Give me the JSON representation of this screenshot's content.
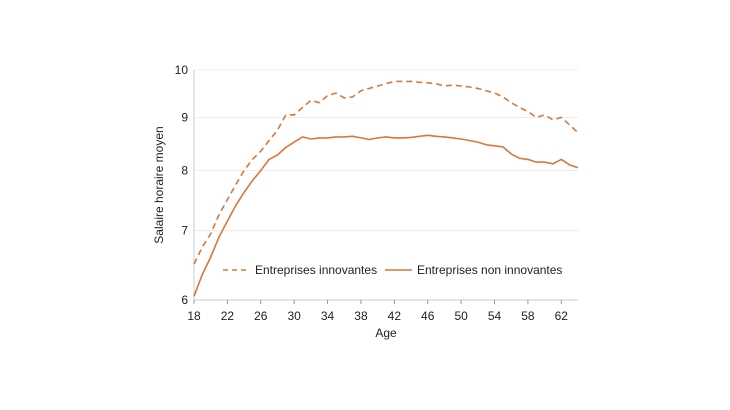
{
  "chart_data": {
    "type": "line",
    "title": "",
    "xlabel": "Age",
    "ylabel": "Salaire horaire moyen",
    "y_scale": "log",
    "xlim": [
      18,
      64
    ],
    "ylim": [
      6,
      10
    ],
    "x_ticks": [
      18,
      22,
      26,
      30,
      34,
      38,
      42,
      46,
      50,
      54,
      58,
      62
    ],
    "y_ticks": [
      6,
      7,
      8,
      9,
      10
    ],
    "grid": "horizontal",
    "legend_position": "inside-bottom",
    "x": [
      18,
      19,
      20,
      21,
      22,
      23,
      24,
      25,
      26,
      27,
      28,
      29,
      30,
      31,
      32,
      33,
      34,
      35,
      36,
      37,
      38,
      39,
      40,
      41,
      42,
      43,
      44,
      45,
      46,
      47,
      48,
      49,
      50,
      51,
      52,
      53,
      54,
      55,
      56,
      57,
      58,
      59,
      60,
      61,
      62,
      63,
      64
    ],
    "series": [
      {
        "name": "Entreprises innovantes",
        "style": "dashed",
        "color": "#d9773b",
        "values": [
          6.5,
          6.75,
          6.95,
          7.25,
          7.5,
          7.75,
          8.0,
          8.2,
          8.35,
          8.55,
          8.75,
          9.05,
          9.05,
          9.2,
          9.35,
          9.3,
          9.45,
          9.5,
          9.4,
          9.42,
          9.55,
          9.6,
          9.65,
          9.7,
          9.75,
          9.75,
          9.75,
          9.73,
          9.72,
          9.7,
          9.65,
          9.67,
          9.65,
          9.63,
          9.6,
          9.55,
          9.5,
          9.42,
          9.3,
          9.2,
          9.12,
          9.0,
          9.05,
          8.95,
          9.0,
          8.85,
          8.7
        ]
      },
      {
        "name": "Entreprises non innovantes",
        "style": "solid",
        "color": "#d9773b",
        "values": [
          6.05,
          6.35,
          6.6,
          6.9,
          7.15,
          7.4,
          7.62,
          7.82,
          8.0,
          8.2,
          8.28,
          8.42,
          8.52,
          8.62,
          8.58,
          8.6,
          8.6,
          8.62,
          8.62,
          8.63,
          8.6,
          8.57,
          8.6,
          8.62,
          8.6,
          8.6,
          8.61,
          8.63,
          8.65,
          8.63,
          8.62,
          8.6,
          8.58,
          8.55,
          8.52,
          8.47,
          8.45,
          8.43,
          8.3,
          8.22,
          8.2,
          8.15,
          8.15,
          8.12,
          8.2,
          8.1,
          8.05
        ]
      }
    ]
  }
}
